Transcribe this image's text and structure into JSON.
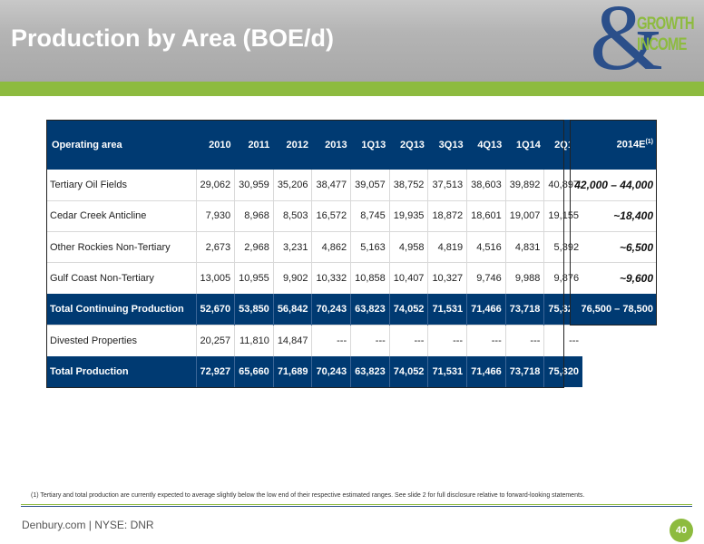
{
  "title": "Production by Area (BOE/d)",
  "logo": {
    "symbol": "&",
    "line1": "GROWTH",
    "line2": "INCOME"
  },
  "table": {
    "header_label": "Operating area",
    "columns": [
      "2010",
      "2011",
      "2012",
      "2013",
      "1Q13",
      "2Q13",
      "3Q13",
      "4Q13",
      "1Q14",
      "2Q14"
    ],
    "rows": [
      {
        "area": "Tertiary Oil Fields",
        "values": [
          "29,062",
          "30,959",
          "35,206",
          "38,477",
          "39,057",
          "38,752",
          "37,513",
          "38,603",
          "39,892",
          "40,897"
        ]
      },
      {
        "area": "Cedar Creek Anticline",
        "values": [
          "7,930",
          "8,968",
          "8,503",
          "16,572",
          "8,745",
          "19,935",
          "18,872",
          "18,601",
          "19,007",
          "19,155"
        ]
      },
      {
        "area": "Other Rockies Non-Tertiary",
        "values": [
          "2,673",
          "2,968",
          "3,231",
          "4,862",
          "5,163",
          "4,958",
          "4,819",
          "4,516",
          "4,831",
          "5,392"
        ]
      },
      {
        "area": "Gulf Coast Non-Tertiary",
        "values": [
          "13,005",
          "10,955",
          "9,902",
          "10,332",
          "10,858",
          "10,407",
          "10,327",
          "9,746",
          "9,988",
          "9,876"
        ]
      },
      {
        "area": "Total Continuing Production",
        "values": [
          "52,670",
          "53,850",
          "56,842",
          "70,243",
          "63,823",
          "74,052",
          "71,531",
          "71,466",
          "73,718",
          "75,320"
        ]
      },
      {
        "area": "Divested Properties",
        "values": [
          "20,257",
          "11,810",
          "14,847",
          "---",
          "---",
          "---",
          "---",
          "---",
          "---",
          "---"
        ]
      },
      {
        "area": "Total Production",
        "values": [
          "72,927",
          "65,660",
          "71,689",
          "70,243",
          "63,823",
          "74,052",
          "71,531",
          "71,466",
          "73,718",
          "75,320"
        ]
      }
    ]
  },
  "estimate": {
    "header": "2014E",
    "header_note": "(1)",
    "values": [
      "42,000 – 44,000",
      "~18,400",
      "~6,500",
      "~9,600",
      "76,500 – 78,500"
    ]
  },
  "footnote": "(1)  Tertiary and total production are currently expected to average slightly below the low end of their respective estimated ranges.  See slide 2 for full disclosure relative to forward-looking statements.",
  "footer": {
    "text": "Denbury.com | NYSE: DNR",
    "page": "40"
  },
  "colors": {
    "navy": "#003a72",
    "green": "#8dbb3f",
    "logo_blue": "#2b4f8a"
  }
}
